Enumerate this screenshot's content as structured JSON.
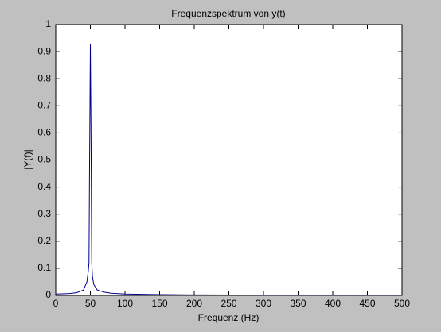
{
  "chart_data": {
    "type": "line",
    "title": "Frequenzspektrum von y(t)",
    "xlabel": "Frequenz (Hz)",
    "ylabel": "|Y(f)|",
    "x": [
      0,
      10,
      20,
      30,
      40,
      45,
      47,
      48,
      49,
      50,
      51,
      52,
      53,
      55,
      60,
      70,
      80,
      100,
      150,
      200,
      300,
      400,
      500
    ],
    "series": [
      {
        "color": "#00008b",
        "values": [
          0.005,
          0.006,
          0.007,
          0.01,
          0.02,
          0.05,
          0.09,
          0.12,
          0.54,
          0.93,
          0.58,
          0.12,
          0.07,
          0.04,
          0.02,
          0.012,
          0.008,
          0.005,
          0.003,
          0.002,
          0.001,
          0.001,
          0.001
        ]
      }
    ],
    "xlim": [
      0,
      500
    ],
    "ylim": [
      0,
      1
    ],
    "xticks": [
      0,
      50,
      100,
      150,
      200,
      250,
      300,
      350,
      400,
      450,
      500
    ],
    "yticks": [
      0,
      0.1,
      0.2,
      0.3,
      0.4,
      0.5,
      0.6,
      0.7,
      0.8,
      0.9,
      1
    ]
  }
}
